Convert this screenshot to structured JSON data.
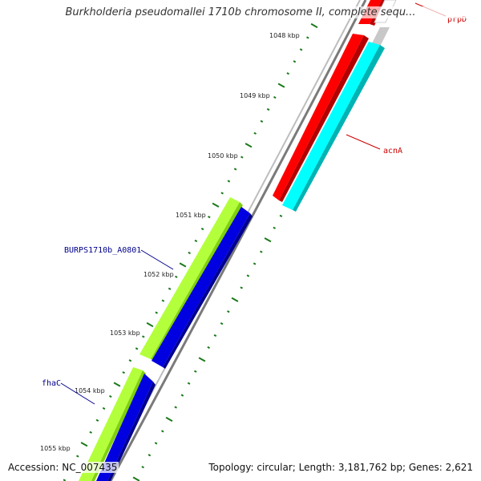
{
  "title": "Burkholderia pseudomallei 1710b chromosome II, complete sequ...",
  "accession": "Accession: NC_007435",
  "summary": "Topology: circular; Length: 3,181,762 bp; Genes: 2,621",
  "colors": {
    "backbone": "#888888",
    "tick": "#1a7a1a",
    "forward_label": "#cc0000",
    "reverse_label": "#00008b",
    "acnA_outer": "#ff0000",
    "acnA_inner": "#00ffff",
    "burps_outer": "#b4ff3c",
    "burps_inner": "#0000e0",
    "fhac_outer": "#b4ff3c",
    "fhac_inner": "#0000e0",
    "prpD": "#ff0000"
  },
  "tick_labels": [
    "1048 kbp",
    "1049 kbp",
    "1050 kbp",
    "1051 kbp",
    "1052 kbp",
    "1053 kbp",
    "1054 kbp",
    "1055 kbp"
  ],
  "genes": [
    {
      "name": "prpD",
      "strand": "forward",
      "color": "#ff0000"
    },
    {
      "name": "acnA",
      "strand": "forward",
      "color": "#ff0000"
    },
    {
      "name": "BURPS1710b_A0801",
      "strand": "reverse",
      "color": "#b4ff3c"
    },
    {
      "name": "fhaC",
      "strand": "reverse",
      "color": "#b4ff3c"
    }
  ]
}
